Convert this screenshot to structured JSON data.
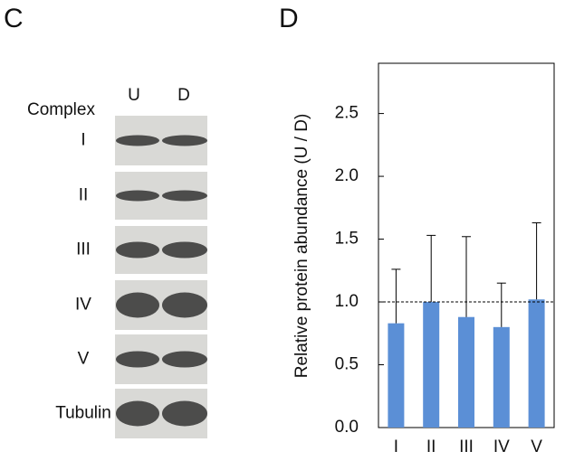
{
  "panel_c": {
    "label": "C",
    "header": "Complex",
    "lanes": [
      "U",
      "D"
    ],
    "rows": [
      "I",
      "II",
      "III",
      "IV",
      "V",
      "Tubulin"
    ]
  },
  "chart_data": {
    "type": "bar",
    "panel_label": "D",
    "ylabel": "Relative protein abundance (U / D)",
    "categories": [
      "I",
      "II",
      "III",
      "IV",
      "V"
    ],
    "values": [
      0.83,
      1.0,
      0.88,
      0.8,
      1.02
    ],
    "errors": [
      0.43,
      0.53,
      0.64,
      0.35,
      0.61
    ],
    "color": "#5b8fd6",
    "ylim": [
      0,
      2.9
    ],
    "yticks": [
      {
        "value": 0,
        "label": "0.0"
      },
      {
        "value": 0.5,
        "label": "0.5"
      },
      {
        "value": 1,
        "label": "1.0"
      },
      {
        "value": 1.5,
        "label": "1.5"
      },
      {
        "value": 2,
        "label": "2.0"
      },
      {
        "value": 2.5,
        "label": "2.5"
      }
    ],
    "reference_line": 1
  }
}
